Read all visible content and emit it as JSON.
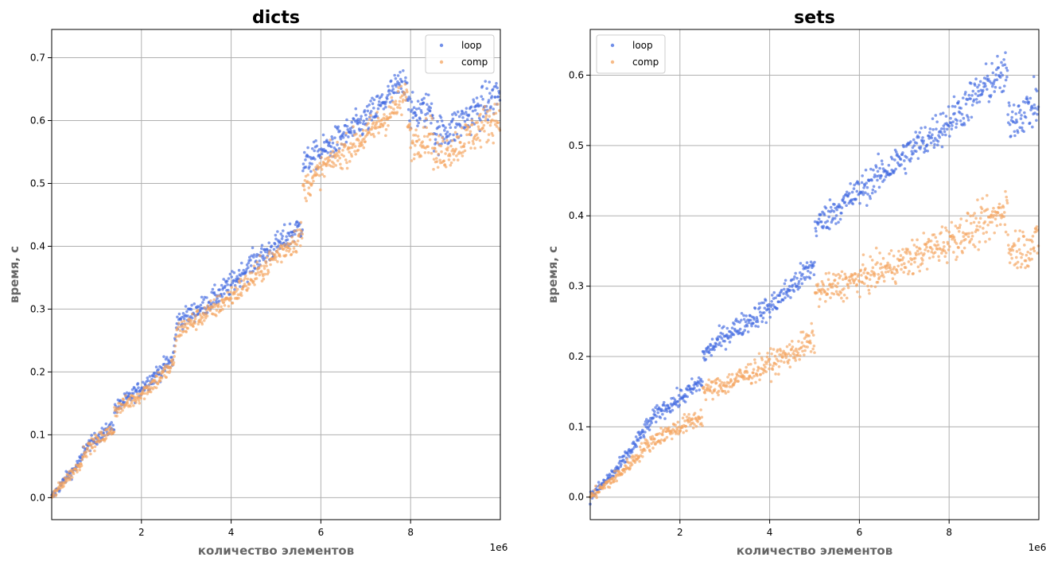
{
  "chart_data": [
    {
      "type": "scatter",
      "title": "dicts",
      "xlabel": "количество элементов",
      "ylabel": "время, с",
      "x_offset_label": "1e6",
      "xlim": [
        0,
        10000000
      ],
      "ylim": [
        -0.035,
        0.745
      ],
      "xticks": [
        2000000,
        4000000,
        6000000,
        8000000
      ],
      "xtick_labels": [
        "2",
        "4",
        "6",
        "8"
      ],
      "yticks": [
        0.0,
        0.1,
        0.2,
        0.3,
        0.4,
        0.5,
        0.6,
        0.7
      ],
      "ytick_labels": [
        "0.0",
        "0.1",
        "0.2",
        "0.3",
        "0.4",
        "0.5",
        "0.6",
        "0.7"
      ],
      "grid": true,
      "legend_position": "top-right",
      "series": [
        {
          "name": "loop",
          "color": "#4169e1",
          "x": [
            0,
            300000,
            500000,
            700000,
            700000,
            1000000,
            1400000,
            1400000,
            2000000,
            2700000,
            2800000,
            3500000,
            4000000,
            4500000,
            5000000,
            5600000,
            5600000,
            6200000,
            7000000,
            7600000,
            7900000,
            8000000,
            8500000,
            8500000,
            9000000,
            10000000
          ],
          "y": [
            0.0,
            0.03,
            0.045,
            0.065,
            0.075,
            0.095,
            0.115,
            0.14,
            0.175,
            0.22,
            0.28,
            0.31,
            0.34,
            0.375,
            0.4,
            0.435,
            0.53,
            0.56,
            0.6,
            0.645,
            0.665,
            0.61,
            0.62,
            0.575,
            0.59,
            0.645
          ]
        },
        {
          "name": "comp",
          "color": "#f4a460",
          "x": [
            0,
            300000,
            500000,
            700000,
            700000,
            1000000,
            1400000,
            1400000,
            2000000,
            2700000,
            2800000,
            3500000,
            4000000,
            4500000,
            5000000,
            5600000,
            5600000,
            6200000,
            7000000,
            7600000,
            7900000,
            8000000,
            8500000,
            8500000,
            9000000,
            10000000
          ],
          "y": [
            0.0,
            0.028,
            0.043,
            0.06,
            0.072,
            0.09,
            0.11,
            0.138,
            0.165,
            0.21,
            0.265,
            0.295,
            0.32,
            0.35,
            0.385,
            0.42,
            0.49,
            0.535,
            0.575,
            0.615,
            0.64,
            0.565,
            0.58,
            0.54,
            0.56,
            0.61
          ]
        }
      ]
    },
    {
      "type": "scatter",
      "title": "sets",
      "xlabel": "количество элементов",
      "ylabel": "время, с",
      "x_offset_label": "1e6",
      "xlim": [
        0,
        10000000
      ],
      "ylim": [
        -0.032,
        0.665
      ],
      "xticks": [
        2000000,
        4000000,
        6000000,
        8000000
      ],
      "xtick_labels": [
        "2",
        "4",
        "6",
        "8"
      ],
      "yticks": [
        0.0,
        0.1,
        0.2,
        0.3,
        0.4,
        0.5,
        0.6
      ],
      "ytick_labels": [
        "0.0",
        "0.1",
        "0.2",
        "0.3",
        "0.4",
        "0.5",
        "0.6"
      ],
      "grid": true,
      "legend_position": "top-left",
      "series": [
        {
          "name": "loop",
          "color": "#4169e1",
          "x": [
            0,
            300000,
            600000,
            1000000,
            1200000,
            1500000,
            2000000,
            2500000,
            2500000,
            3000000,
            3500000,
            4000000,
            4500000,
            5000000,
            5000000,
            6000000,
            7000000,
            8000000,
            9000000,
            9300000,
            9300000,
            10000000
          ],
          "y": [
            0.0,
            0.02,
            0.04,
            0.075,
            0.095,
            0.12,
            0.14,
            0.165,
            0.2,
            0.23,
            0.25,
            0.27,
            0.3,
            0.33,
            0.385,
            0.435,
            0.485,
            0.535,
            0.595,
            0.6,
            0.535,
            0.56
          ]
        },
        {
          "name": "comp",
          "color": "#f4a460",
          "x": [
            0,
            300000,
            600000,
            1000000,
            1200000,
            1500000,
            2000000,
            2500000,
            2500000,
            3000000,
            3500000,
            4000000,
            4500000,
            5000000,
            5000000,
            6000000,
            7000000,
            8000000,
            9000000,
            9300000,
            9300000,
            10000000
          ],
          "y": [
            0.0,
            0.015,
            0.03,
            0.055,
            0.07,
            0.085,
            0.1,
            0.115,
            0.15,
            0.16,
            0.175,
            0.19,
            0.205,
            0.225,
            0.29,
            0.31,
            0.335,
            0.365,
            0.395,
            0.42,
            0.35,
            0.36
          ]
        }
      ]
    }
  ]
}
